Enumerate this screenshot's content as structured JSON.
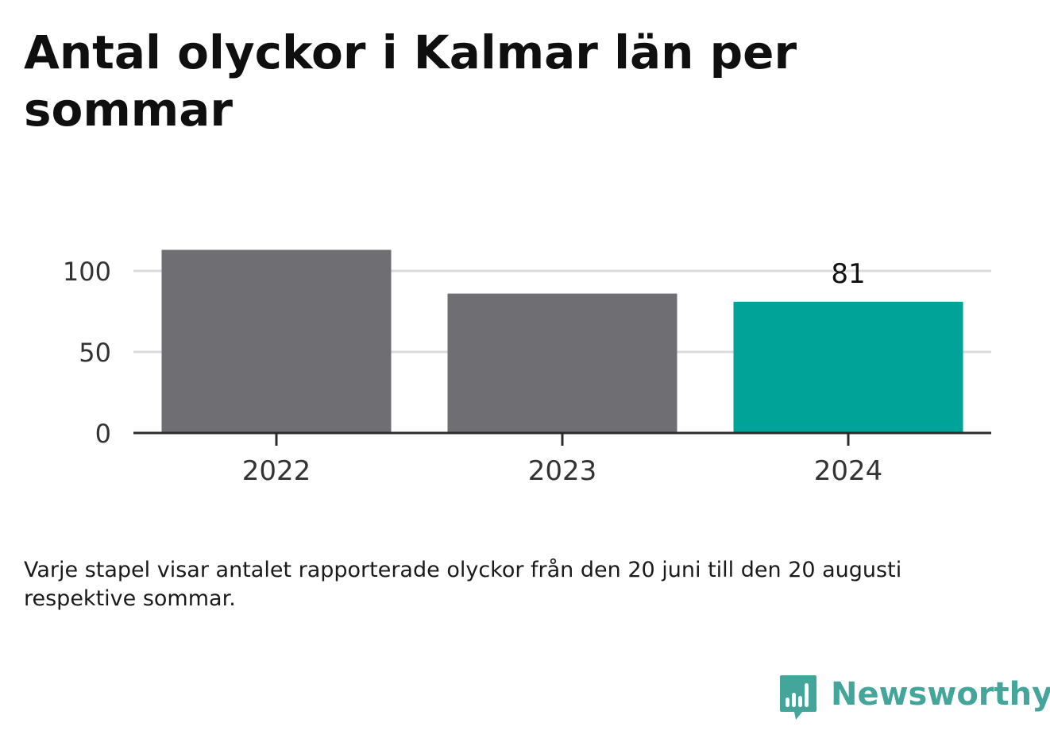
{
  "title": "Antal olyckor i Kalmar län per sommar",
  "note": "Varje stapel visar antalet rapporterade olyckor från den 20 juni till den 20 augusti respektive sommar.",
  "brand": {
    "name": "Newsworthy",
    "icon": "bar-chart-speech-bubble-icon",
    "color": "#44a59a"
  },
  "colors": {
    "default_bar": "#6f6e73",
    "highlight_bar": "#00a398",
    "grid": "#dcdcdc",
    "axis": "#2b2b2b"
  },
  "chart_data": {
    "type": "bar",
    "categories": [
      "2022",
      "2023",
      "2024"
    ],
    "values": [
      113,
      86,
      81
    ],
    "highlight": "2024",
    "data_labels": [
      {
        "category": "2024",
        "text": "81"
      }
    ],
    "yticks": [
      0,
      50,
      100
    ],
    "ylim": [
      0,
      113
    ],
    "grid": true,
    "xlabel": "",
    "ylabel": ""
  }
}
